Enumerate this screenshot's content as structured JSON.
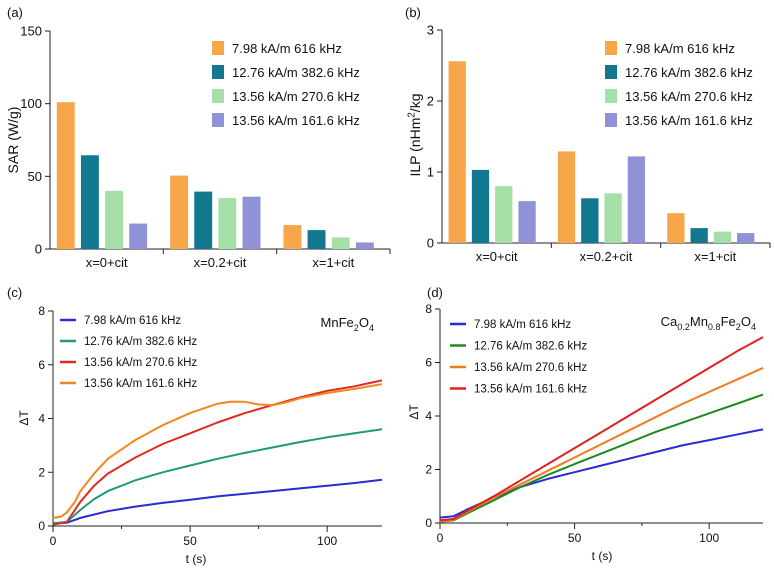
{
  "chart_data": [
    {
      "type": "bar",
      "panel_label": "(a)",
      "ylabel": "SAR (W/g)",
      "xlabel": "",
      "ylim": [
        0,
        150
      ],
      "yticks": [
        0,
        50,
        100,
        150
      ],
      "categories": [
        "x=0+cit",
        "x=0.2+cit",
        "x=1+cit"
      ],
      "series": [
        {
          "name": "7.98 kA/m 616 kHz",
          "color": "#f7a64a",
          "values": [
            101,
            50.5,
            16.5
          ]
        },
        {
          "name": "12.76 kA/m 382.6 kHz",
          "color": "#12788f",
          "values": [
            64.5,
            39.5,
            13
          ]
        },
        {
          "name": "13.56 kA/m 270.6 kHz",
          "color": "#a5e0a7",
          "values": [
            40,
            35,
            8
          ]
        },
        {
          "name": "13.56 kA/m 161.6 kHz",
          "color": "#8f92d6",
          "values": [
            17.5,
            36,
            4.5
          ]
        }
      ]
    },
    {
      "type": "bar",
      "panel_label": "(b)",
      "ylabel": "ILP (nHm2/kg",
      "ylabel_parts": [
        "ILP (nHm",
        "2",
        "/kg"
      ],
      "xlabel": "",
      "ylim": [
        0,
        3
      ],
      "yticks": [
        0,
        1,
        2,
        3
      ],
      "categories": [
        "x=0+cit",
        "x=0.2+cit",
        "x=1+cit"
      ],
      "series": [
        {
          "name": "7.98 kA/m 616 kHz",
          "color": "#f7a64a",
          "values": [
            2.56,
            1.29,
            0.42
          ]
        },
        {
          "name": "12.76 kA/m 382.6 kHz",
          "color": "#12788f",
          "values": [
            1.03,
            0.63,
            0.21
          ]
        },
        {
          "name": "13.56 kA/m 270.6 kHz",
          "color": "#a5e0a7",
          "values": [
            0.8,
            0.7,
            0.16
          ]
        },
        {
          "name": "13.56 kA/m 161.6 kHz",
          "color": "#8f92d6",
          "values": [
            0.59,
            1.22,
            0.14
          ]
        }
      ]
    },
    {
      "type": "line",
      "panel_label": "(c)",
      "annotation_parts": [
        "MnFe",
        "2",
        "O",
        "4"
      ],
      "xlabel": "t (s)",
      "ylabel": "ΔT",
      "xlim": [
        0,
        120
      ],
      "ylim": [
        0,
        8
      ],
      "xticks": [
        0,
        50,
        100
      ],
      "yticks": [
        0,
        2,
        4,
        6,
        8
      ],
      "series": [
        {
          "name": "7.98 kA/m 616 kHz",
          "color": "#2a2ad6",
          "x": [
            0,
            5,
            10,
            20,
            30,
            40,
            50,
            60,
            70,
            80,
            90,
            100,
            110,
            120
          ],
          "y": [
            0.1,
            0.12,
            0.3,
            0.55,
            0.72,
            0.86,
            0.98,
            1.1,
            1.2,
            1.3,
            1.4,
            1.5,
            1.6,
            1.72
          ]
        },
        {
          "name": "12.76 kA/m 382.6 kHz",
          "color": "#1e9a76",
          "x": [
            0,
            5,
            10,
            15,
            20,
            30,
            40,
            50,
            60,
            70,
            80,
            90,
            100,
            110,
            120
          ],
          "y": [
            0.1,
            0.15,
            0.6,
            1.0,
            1.3,
            1.7,
            2.0,
            2.25,
            2.5,
            2.72,
            2.92,
            3.12,
            3.3,
            3.45,
            3.6
          ]
        },
        {
          "name": "13.56 kA/m 270.6 kHz",
          "color": "#e02a1f",
          "x": [
            0,
            5,
            10,
            15,
            20,
            30,
            40,
            50,
            60,
            70,
            80,
            90,
            100,
            110,
            120
          ],
          "y": [
            0.05,
            0.15,
            0.9,
            1.5,
            1.95,
            2.55,
            3.05,
            3.45,
            3.85,
            4.2,
            4.5,
            4.78,
            5.03,
            5.2,
            5.42
          ]
        },
        {
          "name": "13.56 kA/m 161.6 kHz",
          "color": "#f0881d",
          "x": [
            0,
            3,
            5,
            8,
            10,
            15,
            20,
            30,
            40,
            50,
            60,
            65,
            70,
            75,
            80,
            85,
            90,
            100,
            110,
            120
          ],
          "y": [
            0.3,
            0.35,
            0.5,
            0.9,
            1.3,
            1.95,
            2.5,
            3.2,
            3.75,
            4.2,
            4.55,
            4.63,
            4.62,
            4.52,
            4.5,
            4.6,
            4.75,
            4.95,
            5.1,
            5.28
          ]
        }
      ]
    },
    {
      "type": "line",
      "panel_label": "(d)",
      "annotation_parts": [
        "Ca",
        "0.2",
        "Mn",
        "0.8",
        "Fe",
        "2",
        "O",
        "4"
      ],
      "xlabel": "t (s)",
      "ylabel": "ΔT",
      "xlim": [
        0,
        120
      ],
      "ylim": [
        0,
        8
      ],
      "xticks": [
        0,
        50,
        100
      ],
      "yticks": [
        0,
        2,
        4,
        6,
        8
      ],
      "series": [
        {
          "name": "7.98 kA/m 616 kHz",
          "color": "#2a2ad6",
          "x": [
            0,
            5,
            10,
            20,
            30,
            40,
            50,
            60,
            70,
            80,
            90,
            100,
            110,
            120
          ],
          "y": [
            0.2,
            0.25,
            0.5,
            0.95,
            1.35,
            1.65,
            1.9,
            2.15,
            2.4,
            2.65,
            2.9,
            3.1,
            3.3,
            3.5
          ]
        },
        {
          "name": "12.76 kA/m 382.6 kHz",
          "color": "#1f8a1f",
          "x": [
            0,
            5,
            10,
            20,
            30,
            40,
            50,
            60,
            70,
            80,
            90,
            100,
            110,
            120
          ],
          "y": [
            0.05,
            0.1,
            0.35,
            0.85,
            1.35,
            1.8,
            2.2,
            2.6,
            3.0,
            3.4,
            3.75,
            4.1,
            4.45,
            4.8
          ]
        },
        {
          "name": "13.56 kA/m 270.6 kHz",
          "color": "#f07a1d",
          "x": [
            0,
            5,
            10,
            20,
            30,
            40,
            50,
            60,
            70,
            80,
            90,
            100,
            110,
            120
          ],
          "y": [
            0.05,
            0.12,
            0.4,
            0.95,
            1.45,
            1.95,
            2.45,
            2.95,
            3.45,
            3.95,
            4.45,
            4.9,
            5.35,
            5.8
          ]
        },
        {
          "name": "13.56 kA/m 161.6 kHz",
          "color": "#e02020",
          "x": [
            0,
            5,
            10,
            20,
            30,
            40,
            50,
            60,
            70,
            80,
            90,
            100,
            110,
            120
          ],
          "y": [
            0.1,
            0.15,
            0.45,
            1.0,
            1.6,
            2.2,
            2.8,
            3.4,
            4.0,
            4.6,
            5.2,
            5.8,
            6.4,
            6.95
          ]
        }
      ]
    }
  ]
}
